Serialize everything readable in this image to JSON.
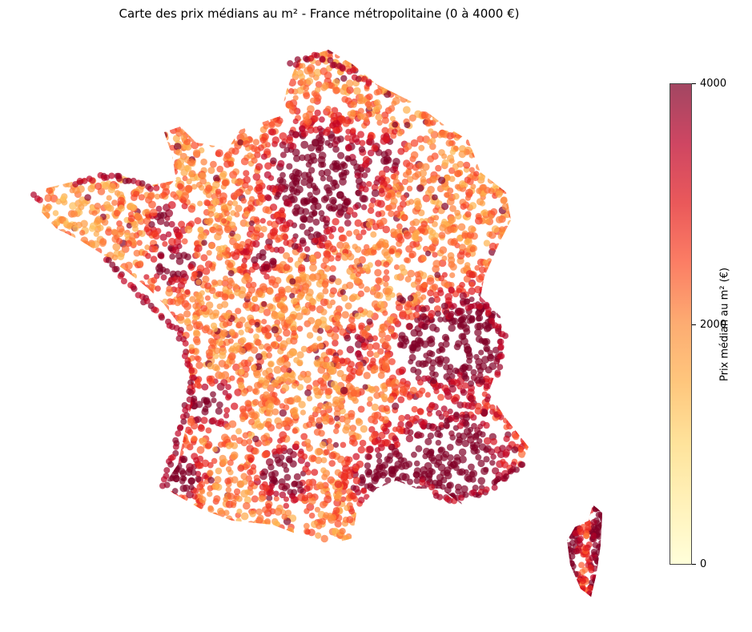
{
  "title": "Carte des prix médians au m² - France métropolitaine (0 à 4000 €)",
  "map": {
    "type": "scatter-choropleth",
    "region": "France métropolitaine",
    "value_range": [
      0,
      4000
    ],
    "point_alpha": 0.7
  },
  "colorbar": {
    "label": "Prix médian au m² (€)",
    "ticks": [
      "0",
      "2000",
      "4000"
    ],
    "colormap": "YlOrRd",
    "colors": [
      "#ffffcc",
      "#ffeda0",
      "#fed976",
      "#feb24c",
      "#fd8d3c",
      "#fc4e2a",
      "#e31a1c",
      "#bd0026",
      "#800026"
    ]
  }
}
